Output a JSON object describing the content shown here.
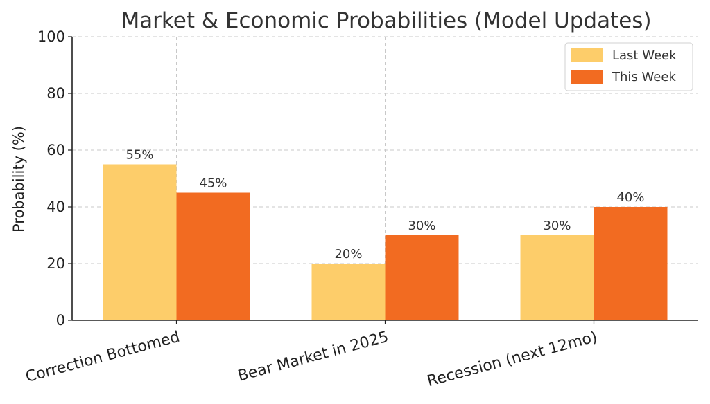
{
  "colors": {
    "last_week": "#fdcd6a",
    "this_week": "#f26b21"
  },
  "chart_data": {
    "type": "bar",
    "title": "Market & Economic Probabilities (Model Updates)",
    "xlabel": "",
    "ylabel": "Probability (%)",
    "ylim": [
      0,
      100
    ],
    "yticks": [
      0,
      20,
      40,
      60,
      80,
      100
    ],
    "categories": [
      "Correction Bottomed",
      "Bear Market in 2025",
      "Recession (next 12mo)"
    ],
    "series": [
      {
        "name": "Last Week",
        "values": [
          55,
          20,
          30
        ],
        "labels": [
          "55%",
          "20%",
          "30%"
        ],
        "color": "#fdcd6a"
      },
      {
        "name": "This Week",
        "values": [
          45,
          30,
          40
        ],
        "labels": [
          "45%",
          "30%",
          "40%"
        ],
        "color": "#f26b21"
      }
    ],
    "grid": true,
    "legend_position": "top-right"
  }
}
